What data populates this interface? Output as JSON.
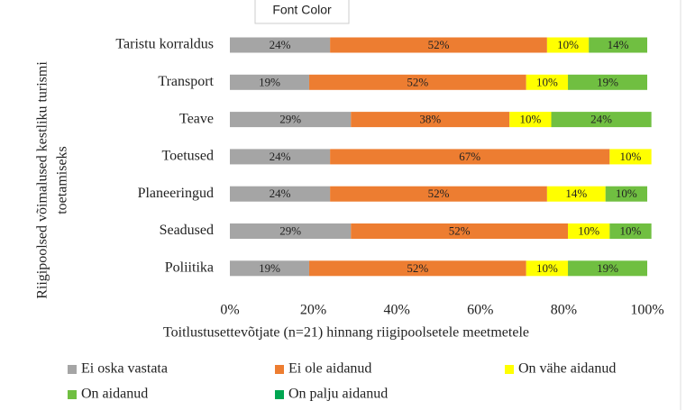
{
  "tooltip": "Font Color",
  "chart_data": {
    "type": "stacked_barh",
    "ylabel_lines": [
      "Riigipoolsed võimalused kestliku turismi",
      "toetamiseks"
    ],
    "xlabel": "Toitlustusettevõtjate (n=21) hinnang riigipoolsetele meetmetele",
    "categories": [
      "Taristu korraldus",
      "Transport",
      "Teave",
      "Toetused",
      "Planeeringud",
      "Seadused",
      "Poliitika"
    ],
    "series": [
      {
        "name": "Ei oska vastata",
        "color": "#a5a5a5",
        "values": [
          24,
          19,
          29,
          24,
          24,
          29,
          19
        ],
        "value_labels": [
          "24%",
          "19%",
          "29%",
          "24%",
          "24%",
          "29%",
          "19%"
        ]
      },
      {
        "name": "Ei ole aidanud",
        "color": "#ed7d31",
        "values": [
          52,
          52,
          38,
          67,
          52,
          52,
          52
        ],
        "value_labels": [
          "52%",
          "52%",
          "38%",
          "67%",
          "52%",
          "52%",
          "52%"
        ]
      },
      {
        "name": "On vähe aidanud",
        "color": "#ffff00",
        "values": [
          10,
          10,
          10,
          10,
          14,
          10,
          10
        ],
        "value_labels": [
          "10%",
          "10%",
          "10%",
          "10%",
          "14%",
          "10%",
          "10%"
        ]
      },
      {
        "name": "On aidanud",
        "color": "#70bf41",
        "values": [
          14,
          19,
          24,
          null,
          10,
          10,
          19
        ],
        "value_labels": [
          "14%",
          "19%",
          "24%",
          null,
          "10%",
          "10%",
          "19%"
        ]
      },
      {
        "name": "On palju aidanud",
        "color": "#00a651",
        "values": [
          null,
          null,
          null,
          null,
          null,
          null,
          null
        ],
        "value_labels": [
          null,
          null,
          null,
          null,
          null,
          null,
          null
        ]
      }
    ],
    "xlim": [
      0,
      100
    ],
    "xticks": [
      {
        "value": 0,
        "label": "0%"
      },
      {
        "value": 20,
        "label": "20%"
      },
      {
        "value": 40,
        "label": "40%"
      },
      {
        "value": 60,
        "label": "60%"
      },
      {
        "value": 80,
        "label": "80%"
      },
      {
        "value": 100,
        "label": "100%"
      }
    ],
    "legend": "bottom"
  }
}
